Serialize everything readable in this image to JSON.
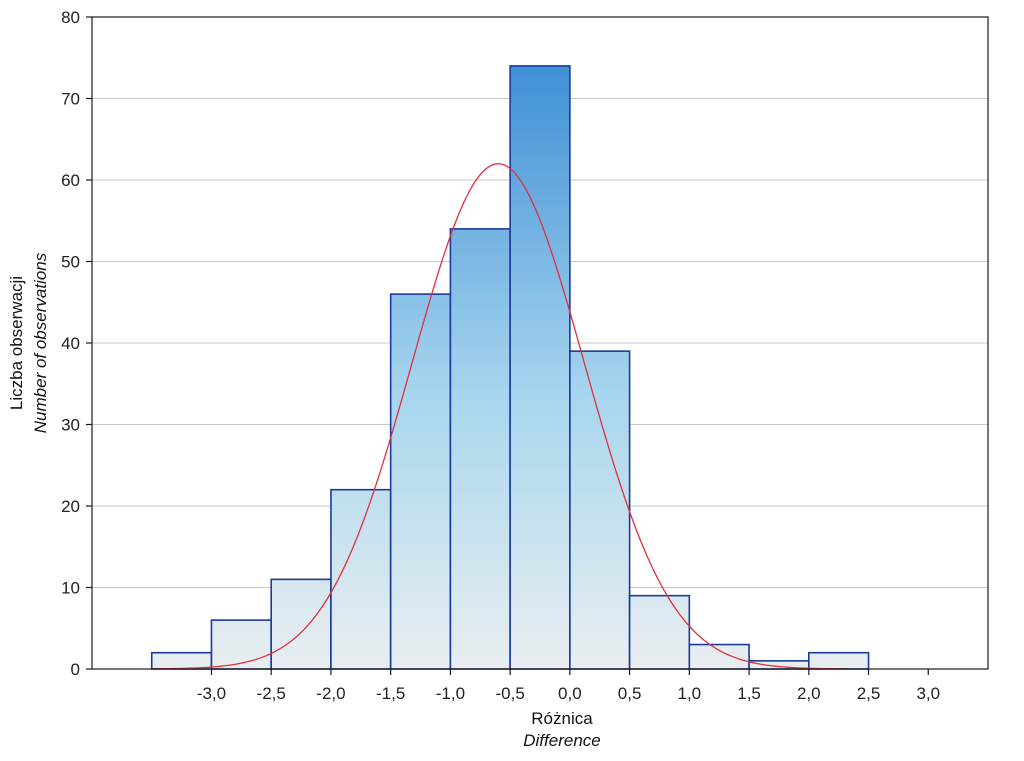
{
  "chart_data": {
    "type": "bar",
    "subtype": "histogram",
    "bins": [
      {
        "x0": -3.5,
        "x1": -3.0,
        "value": 2
      },
      {
        "x0": -3.0,
        "x1": -2.5,
        "value": 6
      },
      {
        "x0": -2.5,
        "x1": -2.0,
        "value": 11
      },
      {
        "x0": -2.0,
        "x1": -1.5,
        "value": 22
      },
      {
        "x0": -1.5,
        "x1": -1.0,
        "value": 46
      },
      {
        "x0": -1.0,
        "x1": -0.5,
        "value": 54
      },
      {
        "x0": -0.5,
        "x1": 0.0,
        "value": 74
      },
      {
        "x0": 0.0,
        "x1": 0.5,
        "value": 39
      },
      {
        "x0": 0.5,
        "x1": 1.0,
        "value": 9
      },
      {
        "x0": 1.0,
        "x1": 1.5,
        "value": 3
      },
      {
        "x0": 1.5,
        "x1": 2.0,
        "value": 1
      },
      {
        "x0": 2.0,
        "x1": 2.5,
        "value": 2
      }
    ],
    "normal_curve": {
      "mean": -0.6,
      "sd": 0.72,
      "peak": 62,
      "x_from": -3.5,
      "x_to": 2.3,
      "color": "#e0303c"
    },
    "xlim": [
      -4.0,
      3.5
    ],
    "ylim": [
      0,
      80
    ],
    "x_ticks": [
      -3.0,
      -2.5,
      -2.0,
      -1.5,
      -1.0,
      -0.5,
      0.0,
      0.5,
      1.0,
      1.5,
      2.0,
      2.5,
      3.0
    ],
    "x_tick_labels": [
      "-3,0",
      "-2,5",
      "-2,0",
      "-1,5",
      "-1,0",
      "-0,5",
      "0,0",
      "0,5",
      "1,0",
      "1,5",
      "2,0",
      "2,5",
      "3,0"
    ],
    "y_ticks": [
      0,
      10,
      20,
      30,
      40,
      50,
      60,
      70,
      80
    ],
    "y_tick_labels": [
      "0",
      "10",
      "20",
      "30",
      "40",
      "50",
      "60",
      "70",
      "80"
    ],
    "xlabel": "Różnica",
    "xlabel_en": "Difference",
    "ylabel": "Liczba obserwacji",
    "ylabel_en": "Number of observations",
    "grid": "horizontal",
    "colors": {
      "bar_top": "#3f8fd6",
      "bar_bottom": "#e9eef0",
      "bar_edge": "#1a3a9c",
      "grid": "#c8c8c8",
      "curve": "#e0303c"
    }
  }
}
